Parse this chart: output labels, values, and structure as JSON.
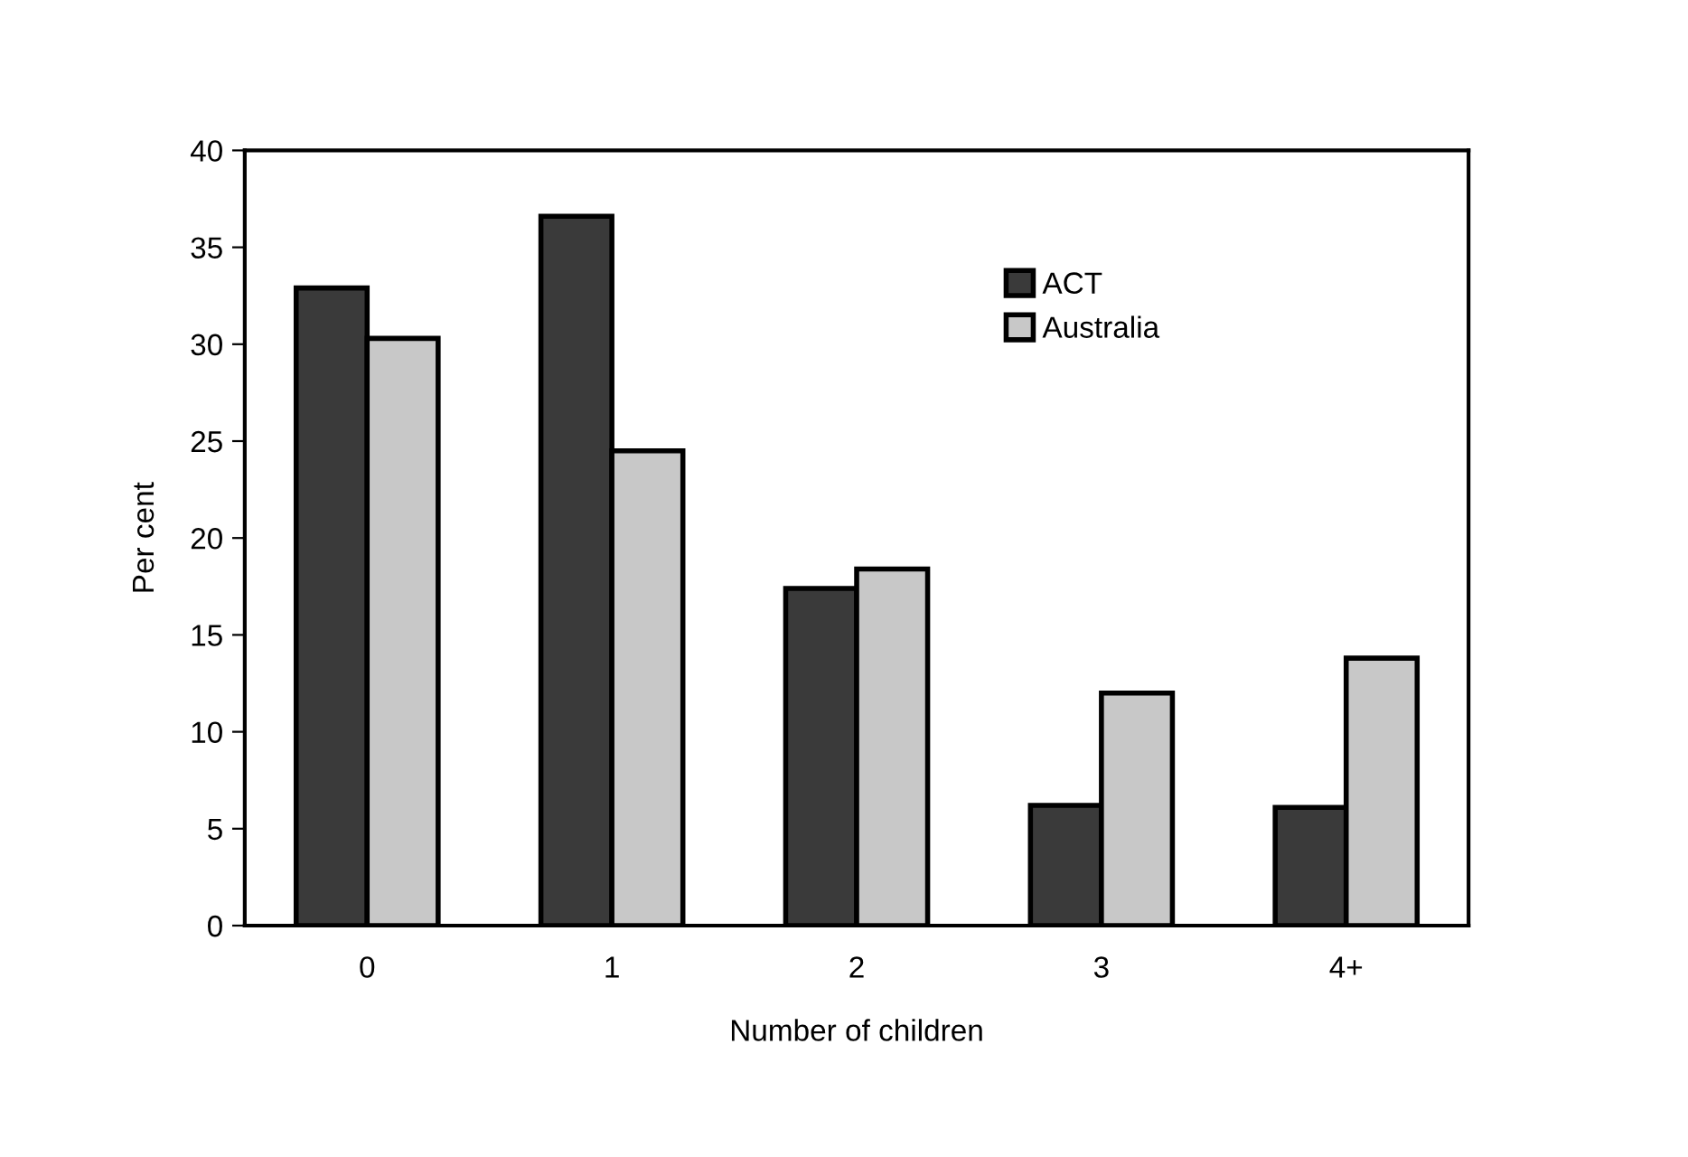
{
  "chart_data": {
    "type": "bar",
    "xlabel": "Number of children",
    "ylabel": "Per cent",
    "categories": [
      "0",
      "1",
      "2",
      "3",
      "4+"
    ],
    "series": [
      {
        "name": "ACT",
        "color": "#3a3a3a",
        "values": [
          32.9,
          36.6,
          17.4,
          6.2,
          6.1
        ]
      },
      {
        "name": "Australia",
        "color": "#c8c8c8",
        "values": [
          30.3,
          24.5,
          18.4,
          12.0,
          13.8
        ]
      }
    ],
    "ylim": [
      0,
      40
    ],
    "yticks": [
      0,
      5,
      10,
      15,
      20,
      25,
      30,
      35,
      40
    ],
    "grid": false,
    "legend": "top right"
  }
}
